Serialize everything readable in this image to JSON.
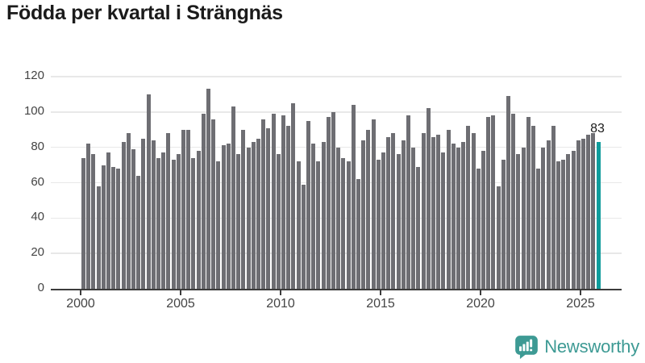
{
  "title": "Födda per kvartal i Strängnäs",
  "logo": {
    "text": "Newsworthy"
  },
  "colors": {
    "bar": "#6e6e73",
    "highlight": "#109c9c",
    "logo_teal": "#3d9a94",
    "axis": "#3c3c3c",
    "gridline": "#e8e8e8",
    "title_text": "#1b1b1b",
    "tick_text": "#444444"
  },
  "chart_data": {
    "type": "bar",
    "title": "Födda per kvartal i Strängnäs",
    "xlabel": "",
    "ylabel": "",
    "ylim": [
      0,
      120
    ],
    "y_ticks": [
      0,
      20,
      40,
      60,
      80,
      100,
      120
    ],
    "x_tick_years": [
      "2000",
      "2005",
      "2010",
      "2015",
      "2020",
      "2025"
    ],
    "frequency": "quarterly",
    "start_year": 2000,
    "grid": true,
    "legend": "none",
    "highlight_last_bar": true,
    "last_value_label": "83",
    "series": [
      {
        "name": "Födda per kvartal",
        "values": [
          74,
          82,
          76,
          58,
          70,
          77,
          69,
          68,
          83,
          88,
          79,
          64,
          85,
          110,
          84,
          74,
          77,
          88,
          73,
          76,
          90,
          90,
          74,
          78,
          99,
          113,
          96,
          72,
          81,
          82,
          103,
          76,
          90,
          80,
          83,
          85,
          96,
          91,
          99,
          76,
          98,
          92,
          105,
          72,
          59,
          95,
          82,
          72,
          83,
          97,
          100,
          80,
          74,
          72,
          104,
          62,
          84,
          90,
          96,
          73,
          77,
          86,
          88,
          76,
          84,
          98,
          80,
          69,
          88,
          102,
          86,
          87,
          77,
          90,
          82,
          80,
          83,
          92,
          88,
          68,
          78,
          97,
          98,
          58,
          73,
          109,
          99,
          76,
          80,
          97,
          92,
          68,
          80,
          84,
          92,
          72,
          73,
          76,
          78,
          84,
          85,
          87,
          88,
          83
        ]
      }
    ]
  }
}
